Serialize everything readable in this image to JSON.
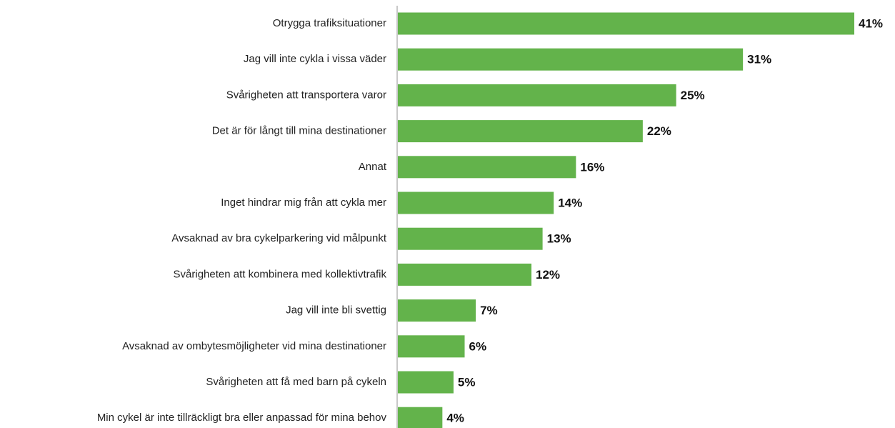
{
  "chart_data": {
    "type": "barh",
    "categories": [
      "Otrygga trafiksituationer",
      "Jag vill inte cykla i vissa väder",
      "Svårigheten att transportera varor",
      "Det är för långt till mina destinationer",
      "Annat",
      "Inget hindrar mig från att cykla mer",
      "Avsaknad av bra cykelparkering vid målpunkt",
      "Svårigheten att kombinera med kollektivtrafik",
      "Jag vill inte bli svettig",
      "Avsaknad av ombytesmöjligheter vid mina destinationer",
      "Svårigheten att få med barn på cykeln",
      "Min cykel är inte tillräckligt bra eller anpassad för mina behov"
    ],
    "values": [
      41,
      31,
      25,
      22,
      16,
      14,
      13,
      12,
      7,
      6,
      5,
      4
    ],
    "value_labels": [
      "41%",
      "31%",
      "25%",
      "22%",
      "16%",
      "14%",
      "13%",
      "12%",
      "7%",
      "6%",
      "5%",
      "4%"
    ],
    "color": "#63b34b"
  }
}
